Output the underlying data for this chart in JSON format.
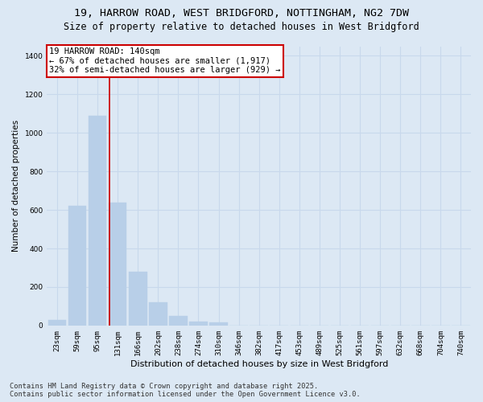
{
  "title_line1": "19, HARROW ROAD, WEST BRIDGFORD, NOTTINGHAM, NG2 7DW",
  "title_line2": "Size of property relative to detached houses in West Bridgford",
  "xlabel": "Distribution of detached houses by size in West Bridgford",
  "ylabel": "Number of detached properties",
  "bar_color": "#b8cfe8",
  "bar_edge_color": "#b8cfe8",
  "grid_color": "#c8d8ec",
  "background_color": "#dce8f4",
  "categories": [
    "23sqm",
    "59sqm",
    "95sqm",
    "131sqm",
    "166sqm",
    "202sqm",
    "238sqm",
    "274sqm",
    "310sqm",
    "346sqm",
    "382sqm",
    "417sqm",
    "453sqm",
    "489sqm",
    "525sqm",
    "561sqm",
    "597sqm",
    "632sqm",
    "668sqm",
    "704sqm",
    "740sqm"
  ],
  "values": [
    30,
    620,
    1090,
    640,
    280,
    120,
    50,
    20,
    15,
    0,
    0,
    0,
    0,
    0,
    0,
    0,
    0,
    0,
    0,
    0,
    0
  ],
  "ylim": [
    0,
    1450
  ],
  "yticks": [
    0,
    200,
    400,
    600,
    800,
    1000,
    1200,
    1400
  ],
  "property_line_x": 2.58,
  "annotation_title": "19 HARROW ROAD: 140sqm",
  "annotation_line1": "← 67% of detached houses are smaller (1,917)",
  "annotation_line2": "32% of semi-detached houses are larger (929) →",
  "annotation_box_color": "#ffffff",
  "annotation_box_edge_color": "#cc0000",
  "vline_color": "#cc0000",
  "footer_line1": "Contains HM Land Registry data © Crown copyright and database right 2025.",
  "footer_line2": "Contains public sector information licensed under the Open Government Licence v3.0.",
  "title_fontsize": 9.5,
  "subtitle_fontsize": 8.5,
  "axis_label_fontsize": 8,
  "tick_fontsize": 6.5,
  "annotation_fontsize": 7.5,
  "footer_fontsize": 6.2,
  "ylabel_fontsize": 7.5
}
